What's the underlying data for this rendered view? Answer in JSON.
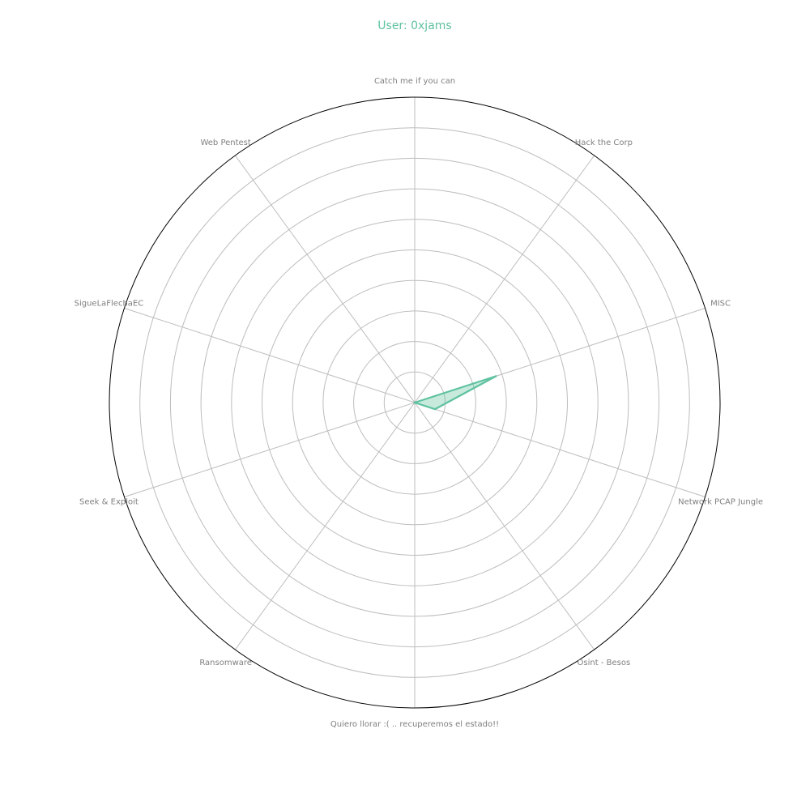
{
  "chart_data": {
    "type": "radar",
    "title": "User: 0xjams",
    "categories": [
      "Catch me if you can",
      "Hack the Corp",
      "MISC",
      "Network PCAP Jungle",
      "Osint - Besos",
      "Quiero llorar :( .. recuperemos el estado!!",
      "Ransomware",
      "Seek & Exploit",
      "SigueLaFlechaEC",
      "Web Pentest"
    ],
    "series": [
      {
        "values": [
          0,
          0,
          28,
          7,
          0,
          0,
          0,
          0,
          0,
          0
        ]
      }
    ],
    "rlim": [
      0,
      100
    ],
    "rgrid_step": 10,
    "radial_tick_labels_shown": false,
    "grid": true
  },
  "colors": {
    "series": "#5fc29f",
    "title": "#5fc29f",
    "label": "#7f7f7f",
    "grid": "#bdbdbd",
    "outer": "#000000"
  }
}
